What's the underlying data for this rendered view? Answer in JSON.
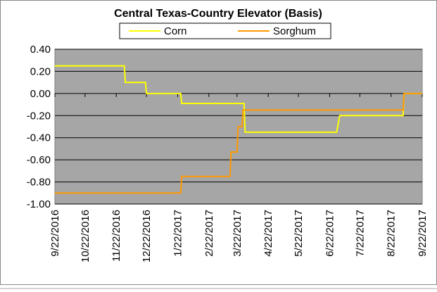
{
  "chart_data": {
    "type": "line",
    "title": "Central Texas-Country Elevator (Basis)",
    "series": [
      {
        "name": "Corn",
        "color": "#ffff00",
        "x": [
          "9/22/2016",
          "11/30/2016",
          "12/1/2016",
          "12/21/2016",
          "12/22/2016",
          "1/25/2017",
          "1/26/2017",
          "3/29/2017",
          "3/30/2017",
          "6/29/2017",
          "7/2/2017",
          "9/3/2017",
          "9/4/2017",
          "9/22/2017"
        ],
        "values": [
          0.25,
          0.25,
          0.1,
          0.1,
          0,
          0,
          -0.09,
          -0.09,
          -0.35,
          -0.35,
          -0.2,
          -0.2,
          0,
          0
        ]
      },
      {
        "name": "Sorghum",
        "color": "#ff9900",
        "x": [
          "9/22/2016",
          "1/25/2017",
          "1/26/2017",
          "3/15/2017",
          "3/16/2017",
          "3/22/2017",
          "3/23/2017",
          "3/27/2017",
          "3/28/2017",
          "9/3/2017",
          "9/4/2017",
          "9/22/2017"
        ],
        "values": [
          -0.9,
          -0.9,
          -0.75,
          -0.75,
          -0.53,
          -0.53,
          -0.3,
          -0.3,
          -0.15,
          -0.15,
          0,
          0
        ]
      }
    ],
    "xlim": [
      "9/22/2016",
      "9/22/2017"
    ],
    "xticks": [
      "9/22/2016",
      "10/22/2016",
      "11/22/2016",
      "12/22/2016",
      "1/22/2017",
      "2/22/2017",
      "3/22/2017",
      "4/22/2017",
      "5/22/2017",
      "6/22/2017",
      "7/22/2017",
      "8/22/2017",
      "9/22/2017"
    ],
    "ylim": [
      -1.0,
      0.4
    ],
    "yticks": [
      {
        "value": 0.4,
        "label": "0.40"
      },
      {
        "value": 0.2,
        "label": "0.20"
      },
      {
        "value": 0,
        "label": "0.00"
      },
      {
        "value": -0.2,
        "label": "-0.20"
      },
      {
        "value": -0.4,
        "label": "-0.40"
      },
      {
        "value": -0.6,
        "label": "-0.60"
      },
      {
        "value": -0.8,
        "label": "-0.80"
      },
      {
        "value": -1.0,
        "label": "-1.00"
      }
    ],
    "grid": true,
    "plot_color": "#a6a6a6",
    "legend": "top"
  }
}
